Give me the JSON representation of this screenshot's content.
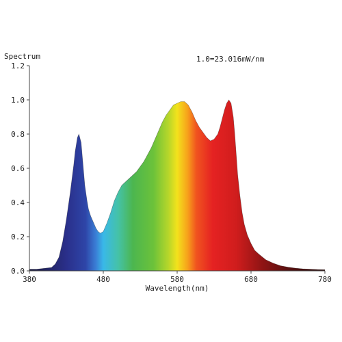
{
  "chart_data": {
    "type": "area",
    "title": "",
    "ylabel": "Spectrum",
    "xlabel": "Wavelength(nm)",
    "annotation": "1.0=23.016mW/nm",
    "xlim": [
      380,
      780
    ],
    "ylim": [
      0,
      1.2
    ],
    "x_ticks": [
      "380",
      "480",
      "580",
      "680",
      "780"
    ],
    "y_ticks": [
      "0.0",
      "0.2",
      "0.4",
      "0.6",
      "0.8",
      "1.0",
      "1.2"
    ],
    "grid": false,
    "fill": "wavelength-rainbow",
    "x": [
      380,
      390,
      400,
      410,
      415,
      420,
      425,
      430,
      435,
      440,
      442,
      445,
      447,
      450,
      452,
      455,
      458,
      460,
      463,
      466,
      470,
      473,
      476,
      480,
      485,
      490,
      495,
      500,
      505,
      510,
      515,
      520,
      525,
      530,
      535,
      540,
      545,
      550,
      555,
      560,
      565,
      570,
      575,
      580,
      585,
      590,
      595,
      600,
      605,
      610,
      615,
      620,
      625,
      630,
      635,
      638,
      641,
      644,
      647,
      650,
      653,
      656,
      658,
      660,
      662,
      665,
      668,
      671,
      675,
      680,
      685,
      690,
      700,
      710,
      720,
      730,
      740,
      750,
      760,
      770,
      780
    ],
    "y": [
      0.01,
      0.01,
      0.015,
      0.02,
      0.04,
      0.08,
      0.17,
      0.3,
      0.45,
      0.62,
      0.7,
      0.78,
      0.8,
      0.75,
      0.65,
      0.5,
      0.41,
      0.36,
      0.32,
      0.29,
      0.25,
      0.23,
      0.22,
      0.23,
      0.28,
      0.34,
      0.41,
      0.46,
      0.5,
      0.52,
      0.54,
      0.56,
      0.58,
      0.61,
      0.64,
      0.68,
      0.72,
      0.77,
      0.82,
      0.87,
      0.91,
      0.94,
      0.97,
      0.98,
      0.99,
      0.99,
      0.97,
      0.93,
      0.88,
      0.84,
      0.81,
      0.78,
      0.76,
      0.77,
      0.8,
      0.84,
      0.89,
      0.94,
      0.98,
      1.0,
      0.98,
      0.9,
      0.8,
      0.68,
      0.56,
      0.44,
      0.34,
      0.27,
      0.21,
      0.16,
      0.12,
      0.1,
      0.065,
      0.045,
      0.03,
      0.022,
      0.016,
      0.012,
      0.01,
      0.008,
      0.007
    ]
  }
}
